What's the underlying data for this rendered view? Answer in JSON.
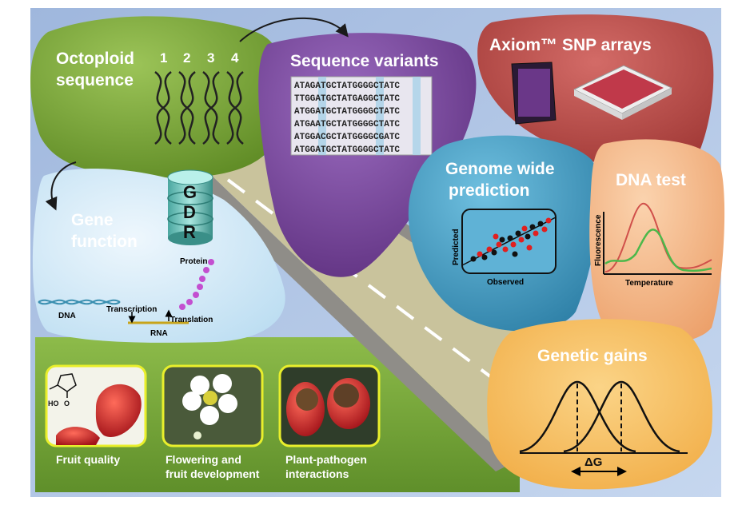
{
  "blobs": {
    "octoploid": {
      "title_line1": "Octoploid",
      "title_line2": "sequence",
      "numbers": [
        "1",
        "2",
        "3",
        "4"
      ],
      "color": "#7aa53a"
    },
    "variants": {
      "title": "Sequence variants",
      "color": "#7d4a9d",
      "sequences": [
        "ATAGATGCTATGGGGCTATC",
        "TTGGATGCTATGAGGCTATC",
        "ATGGATGCTATGGGGCTATC",
        "ATGAATGCTATGGGGCTATC",
        "ATGGACGCTATGGGGCGATC",
        "ATGGATGCTATGGGGCTATC"
      ]
    },
    "axiom": {
      "title": "Axiom™ SNP arrays",
      "color": "#c0504d"
    },
    "gene_function": {
      "title_line1": "Gene",
      "title_line2": "function",
      "color": "#d4eaf7",
      "labels": {
        "protein": "Protein",
        "transcription": "Transcription",
        "dna": "DNA",
        "translation": "Translation",
        "rna": "RNA"
      }
    },
    "genome_prediction": {
      "title_line1": "Genome wide",
      "title_line2": "prediction",
      "color": "#4fa3c7",
      "ylabel": "Predicted",
      "xlabel": "Observed"
    },
    "dna_test": {
      "title": "DNA test",
      "color": "#f4b98a",
      "ylabel": "Fluorescence",
      "xlabel": "Temperature"
    },
    "genetic_gains": {
      "title": "Genetic gains",
      "color": "#f6c06a",
      "delta_label": "ΔG"
    }
  },
  "gdr": {
    "letters": [
      "G",
      "D",
      "R"
    ]
  },
  "bottom_panel": {
    "color": "#7aaa3a",
    "items": [
      {
        "caption_line1": "Fruit quality",
        "caption_line2": ""
      },
      {
        "caption_line1": "Flowering and",
        "caption_line2": "fruit development"
      },
      {
        "caption_line1": "Plant-pathogen",
        "caption_line2": "interactions"
      }
    ],
    "molecule_labels": {
      "ho": "HO",
      "o": "O"
    }
  }
}
